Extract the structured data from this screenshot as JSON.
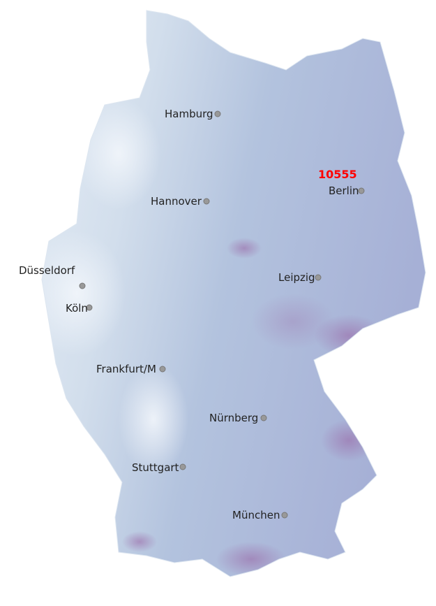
{
  "highlight": {
    "label": "10555",
    "color": "#ff0000"
  },
  "colors": {
    "low": "#e8eff7",
    "mid": "#b3c6df",
    "high": "#a8aed6",
    "peak": "#9a6aa8"
  },
  "cities": [
    {
      "name": "Hamburg"
    },
    {
      "name": "Berlin"
    },
    {
      "name": "Hannover"
    },
    {
      "name": "Düsseldorf"
    },
    {
      "name": "Leipzig"
    },
    {
      "name": "Köln"
    },
    {
      "name": "Frankfurt/M"
    },
    {
      "name": "Nürnberg"
    },
    {
      "name": "Stuttgart"
    },
    {
      "name": "München"
    }
  ]
}
